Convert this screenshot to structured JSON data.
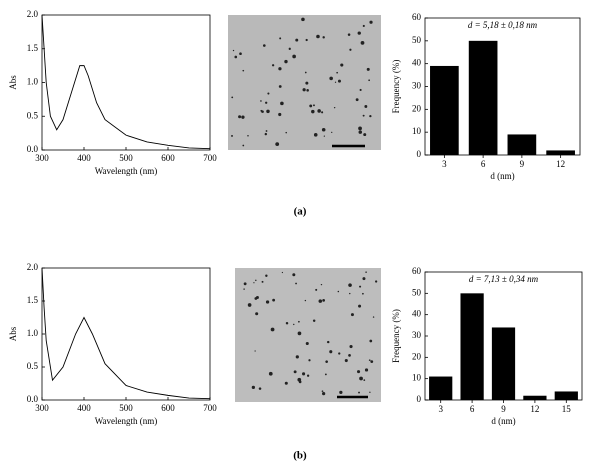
{
  "chart_data": [
    {
      "type": "line",
      "ylabel": "Abs",
      "xlabel": "Wavelength (nm)",
      "x": [
        300,
        305,
        310,
        320,
        335,
        350,
        370,
        390,
        400,
        410,
        430,
        450,
        500,
        550,
        600,
        650,
        700
      ],
      "values": [
        2.0,
        1.5,
        1.0,
        0.5,
        0.3,
        0.45,
        0.85,
        1.25,
        1.25,
        1.1,
        0.7,
        0.45,
        0.22,
        0.12,
        0.07,
        0.03,
        0.02
      ],
      "color": "#000000",
      "xlim": [
        300,
        700
      ],
      "xticks": [
        300,
        400,
        500,
        600,
        700
      ],
      "ylim": [
        0,
        2.0
      ],
      "yticks": [
        {
          "value": 0,
          "label": "0.0"
        },
        0.5,
        {
          "value": 1.0,
          "label": "1.0"
        },
        1.5,
        {
          "value": 2.0,
          "label": "2.0"
        }
      ]
    },
    {
      "type": "bar",
      "ylabel": "Frequency (%)",
      "xlabel": "d (nm)",
      "annotation": "d = 5,18 ± 0,18 nm",
      "categories": [
        "3",
        "6",
        "9",
        "12"
      ],
      "values": [
        39,
        50,
        9,
        2
      ],
      "color": "#000000",
      "ylim": [
        0,
        60
      ],
      "yticks": [
        0,
        10,
        20,
        30,
        40,
        50,
        60
      ]
    },
    {
      "type": "line",
      "ylabel": "Abs",
      "xlabel": "Wavelength (nm)",
      "x": [
        300,
        305,
        310,
        325,
        350,
        380,
        400,
        420,
        450,
        500,
        550,
        600,
        650,
        700
      ],
      "values": [
        2.0,
        1.4,
        0.9,
        0.3,
        0.5,
        1.0,
        1.25,
        1.0,
        0.55,
        0.22,
        0.12,
        0.07,
        0.03,
        0.02
      ],
      "color": "#000000",
      "xlim": [
        300,
        700
      ],
      "xticks": [
        300,
        400,
        500,
        600,
        700
      ],
      "ylim": [
        0,
        2.0
      ],
      "yticks": [
        {
          "value": 0,
          "label": "0.0"
        },
        0.5,
        {
          "value": 1.0,
          "label": "1.0"
        },
        1.5,
        {
          "value": 2.0,
          "label": "2.0"
        }
      ]
    },
    {
      "type": "bar",
      "ylabel": "Frequency (%)",
      "xlabel": "d (nm)",
      "annotation": "d = 7,13 ± 0,34 nm",
      "categories": [
        "3",
        "6",
        "9",
        "12",
        "15"
      ],
      "values": [
        11,
        50,
        34,
        2,
        4
      ],
      "color": "#000000",
      "ylim": [
        0,
        60
      ],
      "yticks": [
        0,
        10,
        20,
        30,
        40,
        50,
        60
      ]
    }
  ],
  "panel_labels": [
    "(a)",
    "(b)"
  ]
}
